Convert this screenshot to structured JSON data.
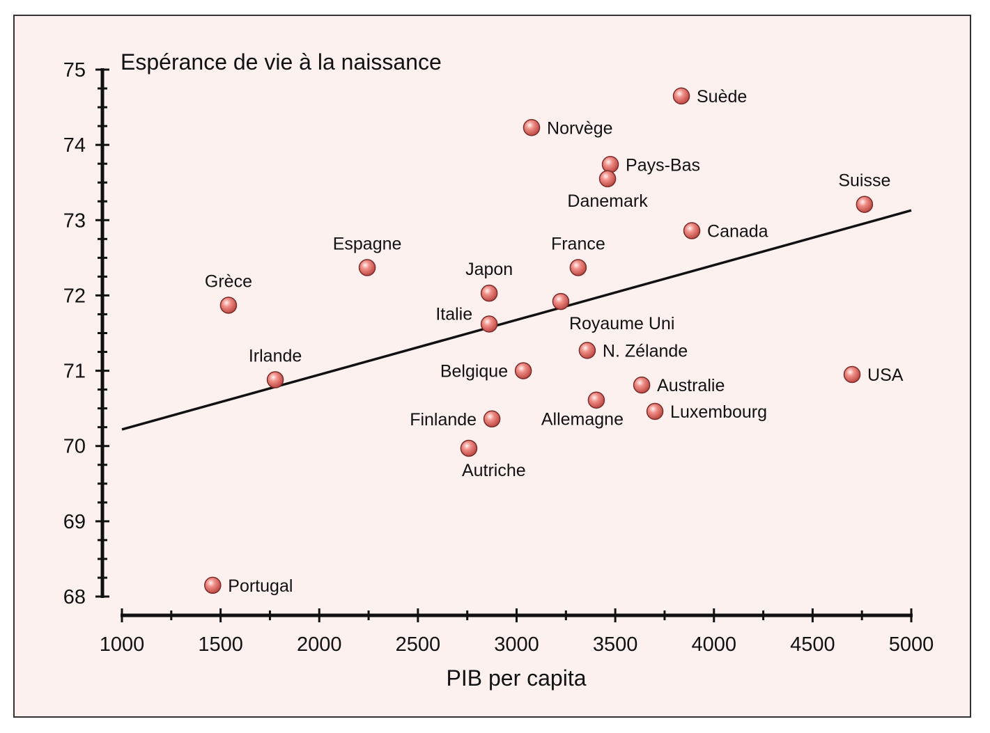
{
  "chart_data": {
    "type": "scatter",
    "title": "Espérance de vie à la naissance",
    "xlabel": "PIB per capita",
    "ylabel": "Espérance de vie à la naissance",
    "xlim": [
      1000,
      5000
    ],
    "ylim": [
      68,
      75
    ],
    "xticks": [
      "1000",
      "1500",
      "2000",
      "2500",
      "3000",
      "3500",
      "4000",
      "4500",
      "5000"
    ],
    "yticks": [
      "68",
      "69",
      "70",
      "71",
      "72",
      "73",
      "74",
      "75"
    ],
    "grid": false,
    "colors": {
      "background": "#fcf1ef",
      "point": "#e06a66",
      "line": "#111111"
    },
    "trendline": {
      "x": [
        1000,
        5000
      ],
      "y": [
        70.22,
        73.13
      ]
    },
    "points": [
      {
        "label": "Portugal",
        "x": 1460,
        "y": 68.15,
        "label_pos": "right"
      },
      {
        "label": "Grèce",
        "x": 1540,
        "y": 71.87,
        "label_pos": "above"
      },
      {
        "label": "Irlande",
        "x": 1777,
        "y": 70.88,
        "label_pos": "above"
      },
      {
        "label": "Espagne",
        "x": 2243,
        "y": 72.37,
        "label_pos": "above"
      },
      {
        "label": "Japon",
        "x": 2861,
        "y": 72.03,
        "label_pos": "above"
      },
      {
        "label": "Italie",
        "x": 2861,
        "y": 71.62,
        "label_pos": "above-left"
      },
      {
        "label": "Belgique",
        "x": 3034,
        "y": 71.0,
        "label_pos": "left"
      },
      {
        "label": "Finlande",
        "x": 2875,
        "y": 70.36,
        "label_pos": "left"
      },
      {
        "label": "Autriche",
        "x": 2758,
        "y": 69.97,
        "label_pos": "below-right"
      },
      {
        "label": "France",
        "x": 3312,
        "y": 72.37,
        "label_pos": "above"
      },
      {
        "label": "Royaume Uni",
        "x": 3224,
        "y": 71.92,
        "label_pos": "below-right"
      },
      {
        "label": "N. Zélande",
        "x": 3358,
        "y": 71.27,
        "label_pos": "right"
      },
      {
        "label": "Allemagne",
        "x": 3404,
        "y": 70.61,
        "label_pos": "below-left"
      },
      {
        "label": "Australie",
        "x": 3634,
        "y": 70.81,
        "label_pos": "right"
      },
      {
        "label": "Luxembourg",
        "x": 3701,
        "y": 70.46,
        "label_pos": "right"
      },
      {
        "label": "Norvège",
        "x": 3076,
        "y": 74.23,
        "label_pos": "right"
      },
      {
        "label": "Pays-Bas",
        "x": 3475,
        "y": 73.74,
        "label_pos": "right"
      },
      {
        "label": "Danemark",
        "x": 3461,
        "y": 73.55,
        "label_pos": "below"
      },
      {
        "label": "Suède",
        "x": 3835,
        "y": 74.65,
        "label_pos": "right"
      },
      {
        "label": "Canada",
        "x": 3888,
        "y": 72.86,
        "label_pos": "right"
      },
      {
        "label": "Suisse",
        "x": 4763,
        "y": 73.21,
        "label_pos": "above"
      },
      {
        "label": "USA",
        "x": 4700,
        "y": 70.95,
        "label_pos": "right"
      }
    ]
  }
}
